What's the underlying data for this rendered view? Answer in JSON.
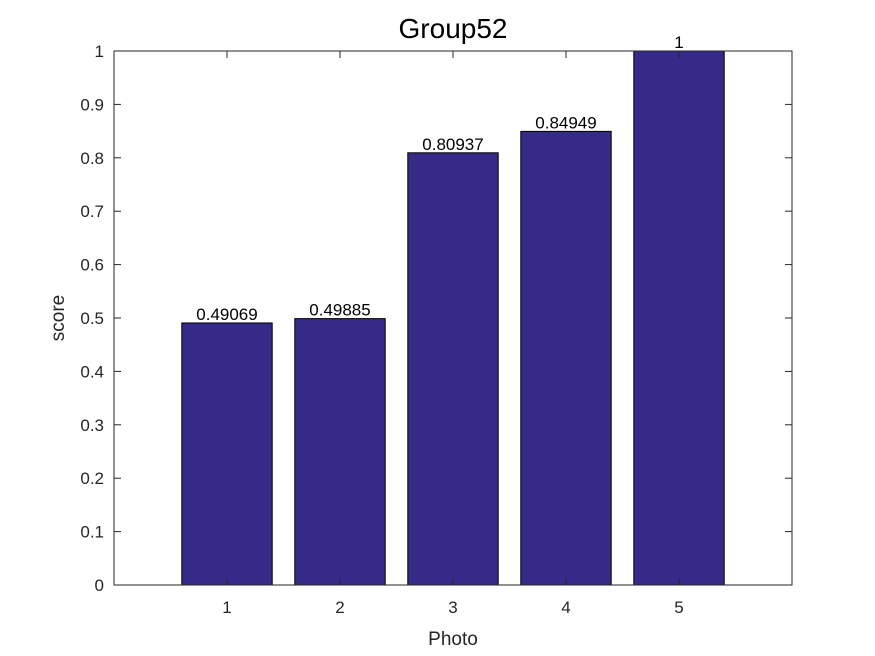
{
  "chart_data": {
    "type": "bar",
    "title": "Group52",
    "xlabel": "Photo",
    "ylabel": "score",
    "x": [
      1,
      2,
      3,
      4,
      5
    ],
    "values": [
      0.49069,
      0.49885,
      0.80937,
      0.84949,
      1
    ],
    "color": "#352a87",
    "xlim": [
      0,
      6
    ],
    "ylim": [
      0,
      1
    ],
    "xticks": [
      1,
      2,
      3,
      4,
      5
    ],
    "yticks": [
      0,
      0.1,
      0.2,
      0.3,
      0.4,
      0.5,
      0.6,
      0.7,
      0.8,
      0.9,
      1
    ]
  }
}
